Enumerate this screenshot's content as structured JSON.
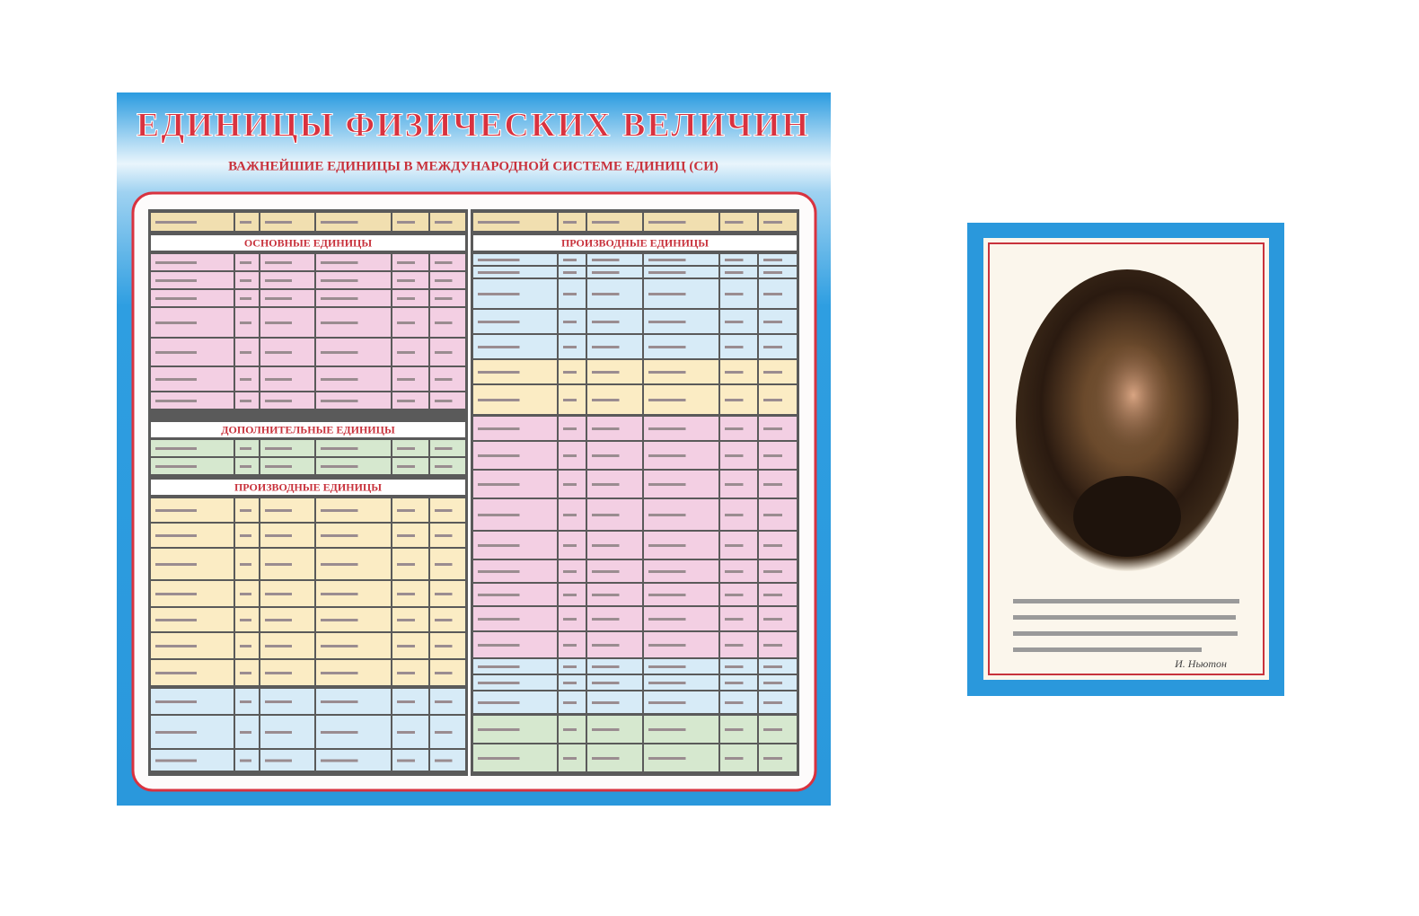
{
  "poster": {
    "title": "ЕДИНИЦЫ ФИЗИЧЕСКИХ ВЕЛИЧИН",
    "subtitle": "ВАЖНЕЙШИЕ ЕДИНИЦЫ В МЕЖДУНАРОДНОЙ СИСТЕМЕ ЕДИНИЦ (СИ)",
    "left_table": {
      "sections": [
        "ОСНОВНЫЕ ЕДИНИЦЫ",
        "ДОПОЛНИТЕЛЬНЫЕ ЕДИНИЦЫ",
        "ПРОИЗВОДНЫЕ ЕДИНИЦЫ"
      ]
    },
    "right_table": {
      "sections": [
        "ПРОИЗВОДНЫЕ ЕДИНИЦЫ"
      ]
    }
  },
  "portrait": {
    "author": "И. Ньютон"
  }
}
